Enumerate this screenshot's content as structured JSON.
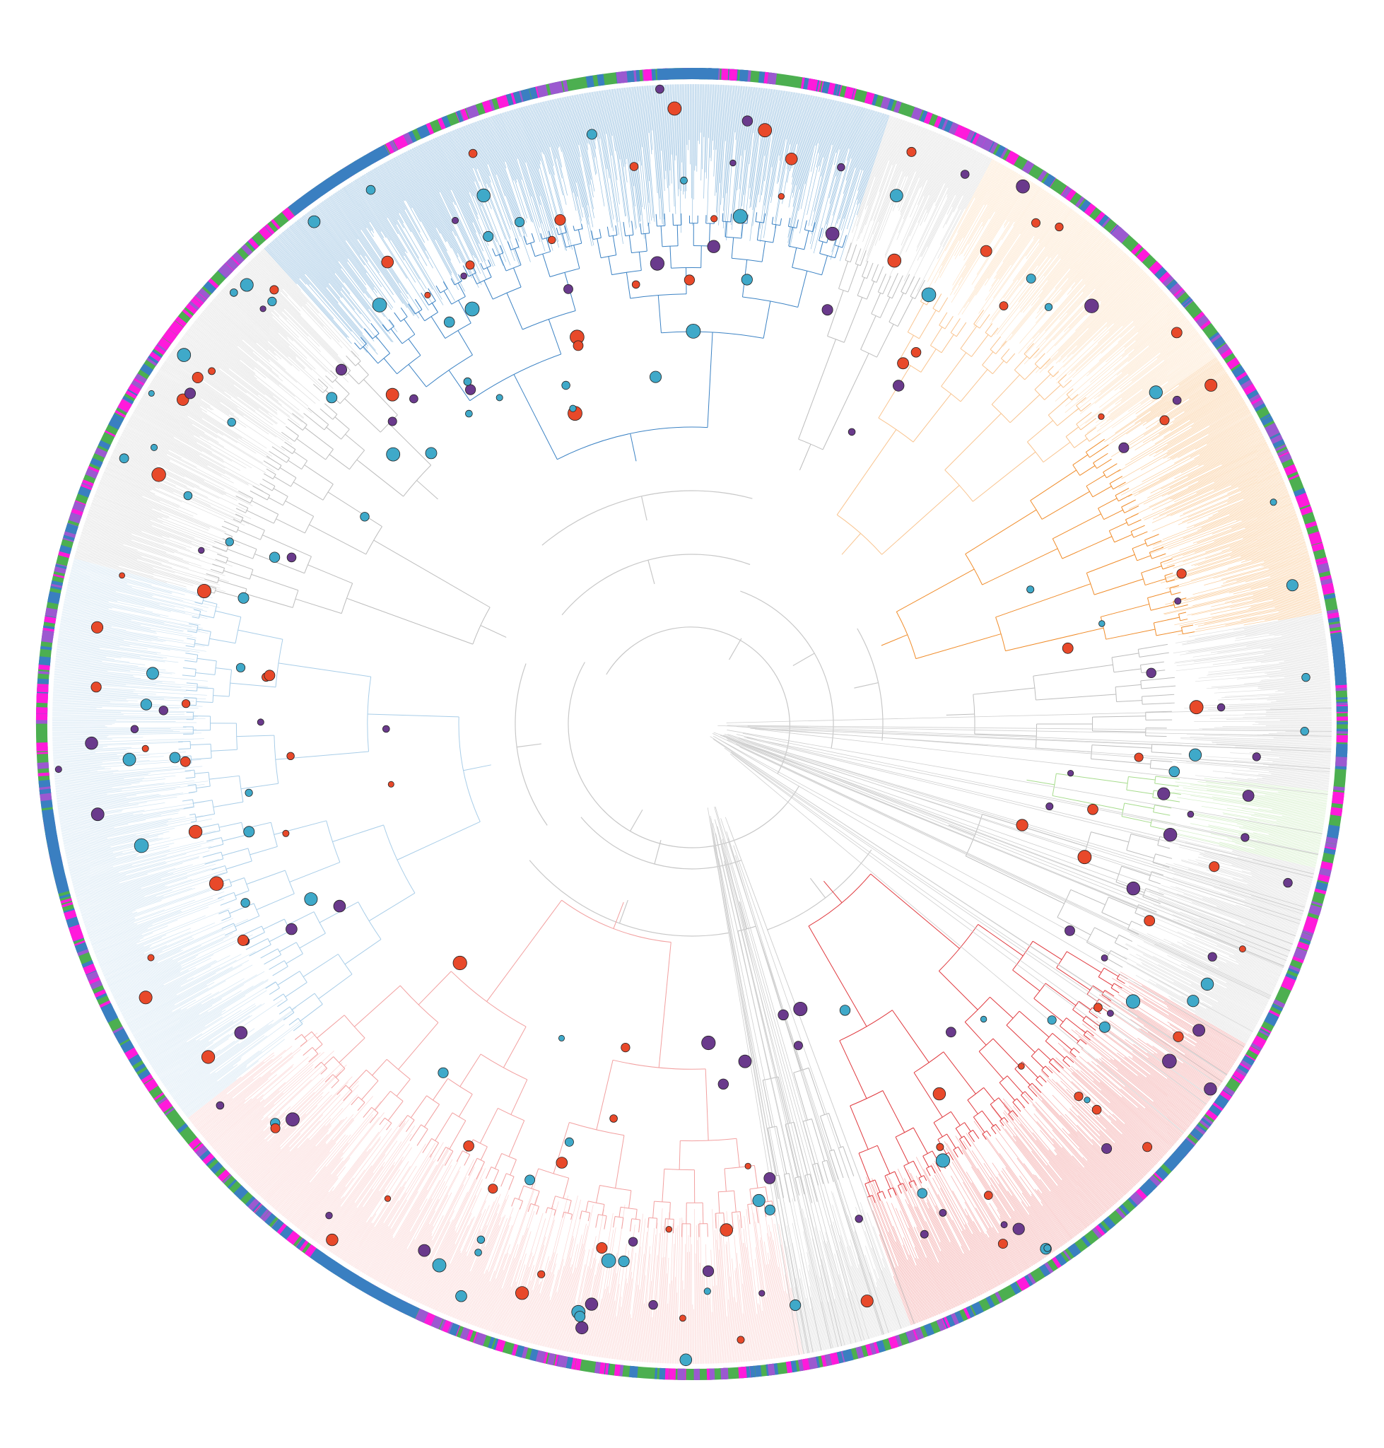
{
  "figure": {
    "type": "circular-phylogenetic-tree",
    "title": "",
    "printed_text": []
  },
  "colors": {
    "background": "#ffffff",
    "ring_green": "#4caf50",
    "ring_blue": "#3a7fc1",
    "ring_magenta": "#ff1adb",
    "ring_purple": "#9b59d0",
    "node_teal": "#3fa9c9",
    "node_orange_red": "#e8492a",
    "node_purple": "#6a3a8c",
    "node_outline": "#222222"
  },
  "clades": [
    {
      "name": "blue",
      "color": "#3b82c4",
      "fan_color": "#8ab8dd"
    },
    {
      "name": "orange",
      "color": "#f08c2a",
      "fan_color": "#f9c993"
    },
    {
      "name": "red",
      "color": "#e0393e",
      "fan_color": "#f3a1a0"
    },
    {
      "name": "light-blue",
      "color": "#a8cde8",
      "fan_color": "#cfe3f2"
    },
    {
      "name": "light-orange",
      "color": "#f9c48f",
      "fan_color": "#fde0c0"
    },
    {
      "name": "pink",
      "color": "#f2a0a0",
      "fan_color": "#fbd0cf"
    },
    {
      "name": "light-green",
      "color": "#a7dc8d",
      "fan_color": "#d3eec7"
    },
    {
      "name": "unassigned",
      "color": "#bdbdbd",
      "fan_color": "#dcdcdc"
    }
  ],
  "markers": {
    "kinds": [
      "teal",
      "orange-red",
      "purple"
    ]
  }
}
